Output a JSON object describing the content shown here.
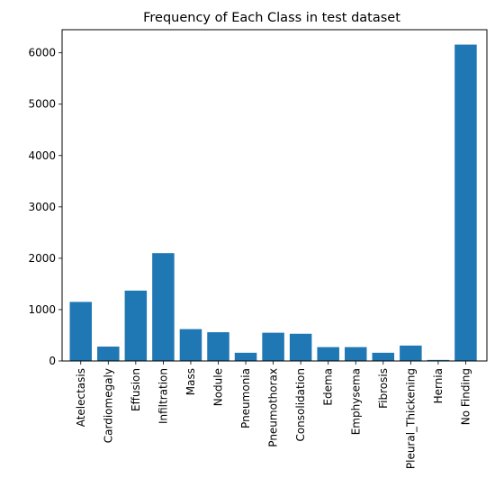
{
  "chart_data": {
    "type": "bar",
    "title": "Frequency of Each Class in test dataset",
    "xlabel": "",
    "ylabel": "",
    "categories": [
      "Atelectasis",
      "Cardiomegaly",
      "Effusion",
      "Infiltration",
      "Mass",
      "Nodule",
      "Pneumonia",
      "Pneumothorax",
      "Consolidation",
      "Edema",
      "Emphysema",
      "Fibrosis",
      "Pleural_Thickening",
      "Hernia",
      "No Finding"
    ],
    "values": [
      1150,
      280,
      1370,
      2100,
      620,
      560,
      160,
      550,
      530,
      270,
      270,
      160,
      300,
      20,
      6160
    ],
    "ylim": [
      0,
      6450
    ],
    "yticks": [
      0,
      1000,
      2000,
      3000,
      4000,
      5000,
      6000
    ],
    "bar_color": "#1f77b4",
    "grid": false,
    "legend": "none"
  }
}
